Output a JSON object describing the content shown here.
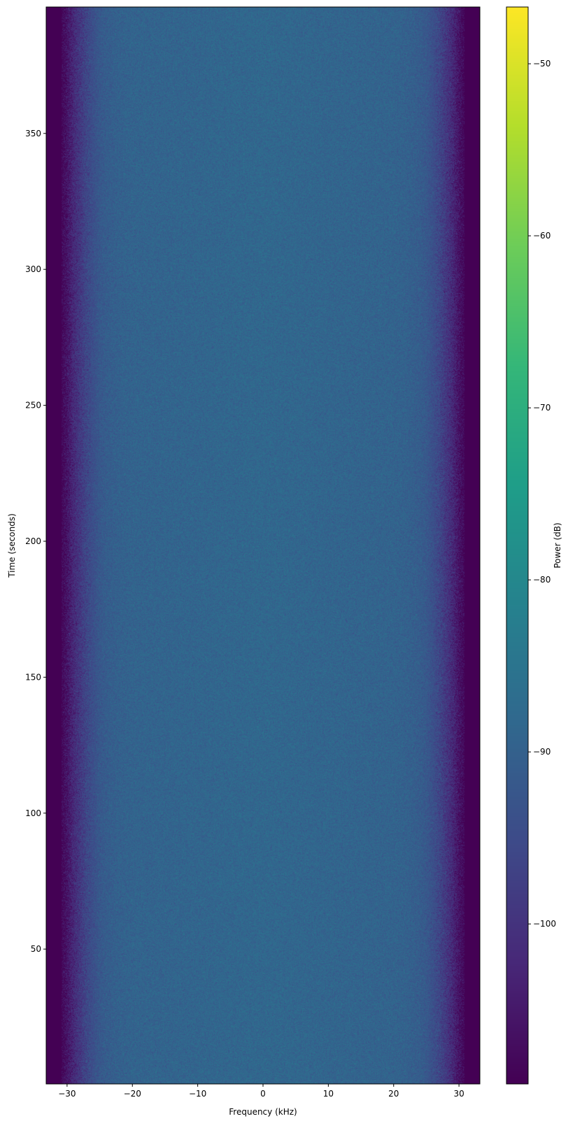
{
  "chart_data": {
    "type": "heatmap",
    "title": "",
    "xlabel": "Frequency (kHz)",
    "ylabel": "Time (seconds)",
    "colorbar_label": "Power (dB)",
    "colormap": "viridis",
    "xlim": [
      -33.2,
      33.2
    ],
    "ylim": [
      0.4,
      396.5
    ],
    "clim": [
      -109.3,
      -46.7
    ],
    "xticks": [
      -30,
      -20,
      -10,
      0,
      10,
      20,
      30
    ],
    "xtick_labels": [
      "−30",
      "−20",
      "−10",
      "0",
      "10",
      "20",
      "30"
    ],
    "yticks": [
      50,
      100,
      150,
      200,
      250,
      300,
      350
    ],
    "ytick_labels": [
      "50",
      "100",
      "150",
      "200",
      "250",
      "300",
      "350"
    ],
    "cticks": [
      -100,
      -90,
      -80,
      -70,
      -60,
      -50
    ],
    "ctick_labels": [
      "−100",
      "−90",
      "−80",
      "−70",
      "−60",
      "−50"
    ],
    "mean_power_profile": {
      "frequency_khz": [
        -33.2,
        -31,
        -30,
        -29,
        -28,
        -27,
        -26,
        -25,
        -24,
        -22,
        -20,
        0,
        20,
        22,
        24,
        25,
        26,
        27,
        28,
        29,
        30,
        31,
        33.2
      ],
      "power_db": [
        -109,
        -109,
        -106,
        -102,
        -99,
        -96,
        -94,
        -92,
        -91,
        -90,
        -89.5,
        -88.5,
        -89.5,
        -90,
        -91,
        -92,
        -94,
        -96,
        -99,
        -102,
        -106,
        -109,
        -109
      ]
    },
    "noise_std_db": 2.5,
    "time_variation": "none (stationary)"
  }
}
